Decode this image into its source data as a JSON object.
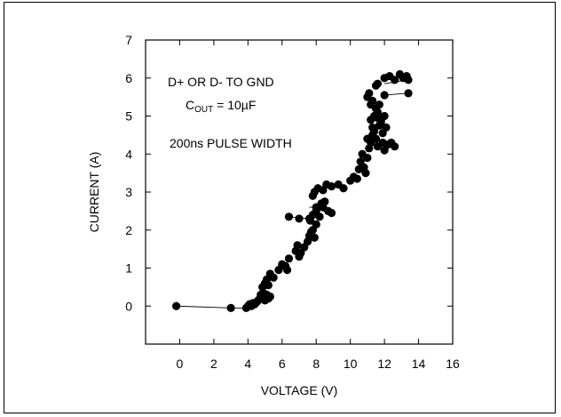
{
  "chart_data": {
    "type": "scatter",
    "title": "",
    "xlabel": "VOLTAGE (V)",
    "ylabel": "CURRENT (A)",
    "xlim": [
      -2,
      16
    ],
    "ylim": [
      -1,
      7
    ],
    "x_ticks": [
      "0",
      "2",
      "4",
      "6",
      "8",
      "10",
      "12",
      "14",
      "16"
    ],
    "y_ticks": [
      "0",
      "1",
      "2",
      "3",
      "4",
      "5",
      "6",
      "7"
    ],
    "grid": false,
    "annotations": {
      "line1": "D+ OR D- TO GND",
      "line2_main": "C",
      "line2_sub": "OUT",
      "line2_rest": " = 10µF",
      "line3": "200ns PULSE WIDTH"
    },
    "series": [
      {
        "marker": "filled-circle",
        "color": "#000000",
        "points": [
          [
            -0.2,
            0.0
          ],
          [
            3.0,
            -0.05
          ],
          [
            3.9,
            -0.05
          ],
          [
            4.0,
            0.0
          ],
          [
            4.1,
            0.05
          ],
          [
            4.2,
            0.0
          ],
          [
            4.3,
            0.08
          ],
          [
            4.4,
            0.05
          ],
          [
            4.5,
            0.1
          ],
          [
            4.6,
            0.15
          ],
          [
            4.7,
            0.2
          ],
          [
            4.75,
            0.3
          ],
          [
            4.8,
            0.25
          ],
          [
            4.9,
            0.35
          ],
          [
            4.85,
            0.5
          ],
          [
            5.0,
            0.15
          ],
          [
            5.1,
            0.3
          ],
          [
            5.2,
            0.2
          ],
          [
            5.3,
            0.25
          ],
          [
            5.0,
            0.6
          ],
          [
            5.2,
            0.55
          ],
          [
            5.1,
            0.7
          ],
          [
            5.3,
            0.85
          ],
          [
            5.5,
            0.75
          ],
          [
            5.8,
            0.95
          ],
          [
            6.0,
            1.1
          ],
          [
            6.2,
            1.05
          ],
          [
            6.4,
            1.25
          ],
          [
            6.3,
            0.95
          ],
          [
            6.8,
            1.45
          ],
          [
            6.9,
            1.6
          ],
          [
            7.1,
            1.4
          ],
          [
            7.3,
            1.55
          ],
          [
            7.0,
            1.3
          ],
          [
            7.5,
            1.7
          ],
          [
            7.6,
            1.85
          ],
          [
            7.7,
            1.95
          ],
          [
            7.8,
            2.0
          ],
          [
            7.9,
            1.8
          ],
          [
            8.0,
            2.15
          ],
          [
            7.65,
            2.25
          ],
          [
            7.8,
            2.4
          ],
          [
            8.0,
            2.5
          ],
          [
            8.2,
            2.35
          ],
          [
            8.3,
            2.7
          ],
          [
            8.4,
            2.6
          ],
          [
            8.5,
            2.75
          ],
          [
            8.7,
            2.5
          ],
          [
            8.9,
            2.45
          ],
          [
            7.8,
            2.9
          ],
          [
            7.9,
            3.0
          ],
          [
            8.1,
            3.1
          ],
          [
            8.4,
            3.05
          ],
          [
            8.6,
            3.2
          ],
          [
            8.9,
            3.15
          ],
          [
            9.3,
            3.2
          ],
          [
            6.4,
            2.35
          ],
          [
            7.0,
            2.3
          ],
          [
            7.6,
            2.3
          ],
          [
            8.0,
            2.6
          ],
          [
            9.6,
            3.1
          ],
          [
            10.0,
            3.3
          ],
          [
            10.2,
            3.4
          ],
          [
            10.4,
            3.35
          ],
          [
            10.5,
            3.6
          ],
          [
            10.6,
            3.8
          ],
          [
            10.7,
            4.0
          ],
          [
            10.8,
            3.65
          ],
          [
            10.9,
            3.5
          ],
          [
            11.0,
            3.9
          ],
          [
            11.1,
            4.15
          ],
          [
            11.2,
            4.3
          ],
          [
            11.0,
            4.4
          ],
          [
            11.3,
            4.5
          ],
          [
            11.4,
            4.6
          ],
          [
            11.5,
            4.4
          ],
          [
            11.6,
            4.2
          ],
          [
            11.7,
            4.75
          ],
          [
            11.8,
            4.85
          ],
          [
            11.9,
            4.3
          ],
          [
            12.0,
            4.1
          ],
          [
            12.2,
            4.25
          ],
          [
            12.4,
            4.3
          ],
          [
            12.6,
            4.2
          ],
          [
            11.2,
            4.9
          ],
          [
            11.4,
            5.0
          ],
          [
            11.5,
            5.2
          ],
          [
            11.6,
            5.1
          ],
          [
            11.7,
            5.3
          ],
          [
            11.3,
            5.4
          ],
          [
            11.1,
            5.6
          ],
          [
            11.0,
            5.5
          ],
          [
            11.2,
            5.3
          ],
          [
            11.8,
            4.9
          ],
          [
            12.0,
            5.0
          ],
          [
            12.1,
            4.7
          ],
          [
            11.5,
            5.8
          ],
          [
            11.6,
            5.85
          ],
          [
            12.0,
            6.0
          ],
          [
            12.3,
            6.05
          ],
          [
            12.6,
            5.95
          ],
          [
            12.9,
            6.1
          ],
          [
            13.1,
            6.0
          ],
          [
            13.3,
            6.05
          ],
          [
            13.4,
            5.95
          ],
          [
            13.4,
            5.6
          ],
          [
            12.0,
            5.55
          ],
          [
            11.9,
            4.55
          ],
          [
            11.6,
            4.95
          ],
          [
            11.3,
            4.7
          ]
        ]
      }
    ],
    "connectors": [
      [
        [
          -0.2,
          0.0
        ],
        [
          3.0,
          -0.05
        ]
      ],
      [
        [
          3.0,
          -0.05
        ],
        [
          3.9,
          -0.05
        ]
      ],
      [
        [
          6.4,
          2.35
        ],
        [
          7.6,
          2.3
        ]
      ],
      [
        [
          7.6,
          2.6
        ],
        [
          8.5,
          2.6
        ]
      ],
      [
        [
          10.0,
          3.3
        ],
        [
          10.6,
          3.3
        ]
      ],
      [
        [
          12.0,
          5.55
        ],
        [
          13.4,
          5.6
        ]
      ],
      [
        [
          12.0,
          5.85
        ],
        [
          13.3,
          5.95
        ]
      ]
    ]
  }
}
